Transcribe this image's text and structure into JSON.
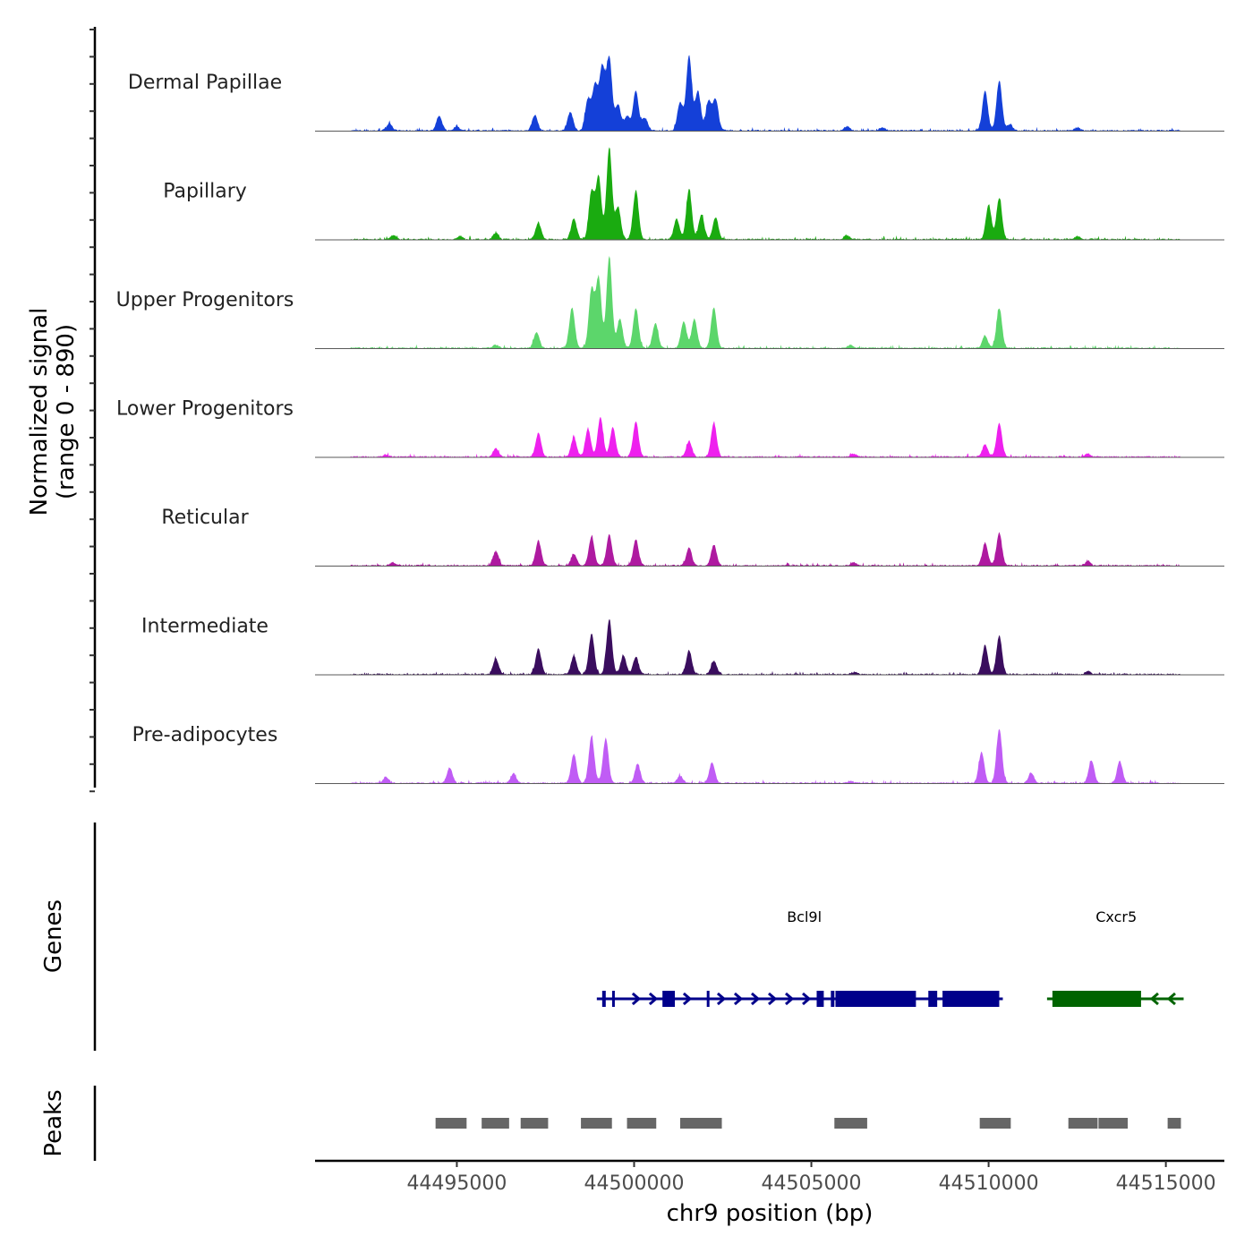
{
  "chart_data": {
    "type": "area",
    "title": "",
    "xlabel": "chr9 position (bp)",
    "ylabel": "Normalized signal\n(range 0 - 890)",
    "ylabel_lines": [
      "Normalized signal",
      "(range 0 - 890)"
    ],
    "xlim": [
      44491000,
      44516650
    ],
    "ylim": [
      0,
      890
    ],
    "x_ticks": [
      44495000,
      44500000,
      44505000,
      44510000,
      44515000
    ],
    "x_tick_labels": [
      "44495000",
      "44500000",
      "44505000",
      "44510000",
      "44515000"
    ],
    "grid": false,
    "legend": "none",
    "baseline_color": "#5a5a5a",
    "series": [
      {
        "name": "Dermal Papillae",
        "color": "#1440d8",
        "peaks": [
          {
            "x": 44493100,
            "y": 70
          },
          {
            "x": 44494500,
            "y": 140
          },
          {
            "x": 44495000,
            "y": 40
          },
          {
            "x": 44497200,
            "y": 150
          },
          {
            "x": 44498200,
            "y": 180
          },
          {
            "x": 44498700,
            "y": 300
          },
          {
            "x": 44498900,
            "y": 430
          },
          {
            "x": 44499100,
            "y": 600
          },
          {
            "x": 44499300,
            "y": 700
          },
          {
            "x": 44499550,
            "y": 250
          },
          {
            "x": 44499800,
            "y": 140
          },
          {
            "x": 44500050,
            "y": 380
          },
          {
            "x": 44500300,
            "y": 120
          },
          {
            "x": 44501300,
            "y": 270
          },
          {
            "x": 44501550,
            "y": 720
          },
          {
            "x": 44501800,
            "y": 380
          },
          {
            "x": 44502100,
            "y": 280
          },
          {
            "x": 44502300,
            "y": 300
          },
          {
            "x": 44506000,
            "y": 40
          },
          {
            "x": 44507000,
            "y": 30
          },
          {
            "x": 44509900,
            "y": 380
          },
          {
            "x": 44510300,
            "y": 480
          },
          {
            "x": 44510600,
            "y": 60
          },
          {
            "x": 44512500,
            "y": 30
          }
        ]
      },
      {
        "name": "Papillary",
        "color": "#1aab10",
        "peaks": [
          {
            "x": 44493200,
            "y": 40
          },
          {
            "x": 44495100,
            "y": 30
          },
          {
            "x": 44496100,
            "y": 60
          },
          {
            "x": 44497300,
            "y": 160
          },
          {
            "x": 44498300,
            "y": 200
          },
          {
            "x": 44498800,
            "y": 460
          },
          {
            "x": 44499000,
            "y": 600
          },
          {
            "x": 44499300,
            "y": 890
          },
          {
            "x": 44499550,
            "y": 310
          },
          {
            "x": 44500050,
            "y": 470
          },
          {
            "x": 44501200,
            "y": 200
          },
          {
            "x": 44501550,
            "y": 480
          },
          {
            "x": 44501900,
            "y": 240
          },
          {
            "x": 44502300,
            "y": 210
          },
          {
            "x": 44506000,
            "y": 40
          },
          {
            "x": 44510000,
            "y": 330
          },
          {
            "x": 44510300,
            "y": 400
          },
          {
            "x": 44512500,
            "y": 30
          }
        ]
      },
      {
        "name": "Upper Progenitors",
        "color": "#5cd66b",
        "peaks": [
          {
            "x": 44496100,
            "y": 30
          },
          {
            "x": 44497250,
            "y": 150
          },
          {
            "x": 44498250,
            "y": 390
          },
          {
            "x": 44498800,
            "y": 560
          },
          {
            "x": 44499000,
            "y": 670
          },
          {
            "x": 44499300,
            "y": 880
          },
          {
            "x": 44499600,
            "y": 280
          },
          {
            "x": 44500050,
            "y": 380
          },
          {
            "x": 44500600,
            "y": 240
          },
          {
            "x": 44501400,
            "y": 260
          },
          {
            "x": 44501700,
            "y": 280
          },
          {
            "x": 44502250,
            "y": 390
          },
          {
            "x": 44506100,
            "y": 30
          },
          {
            "x": 44509900,
            "y": 120
          },
          {
            "x": 44510300,
            "y": 380
          }
        ]
      },
      {
        "name": "Lower Progenitors",
        "color": "#ee20ee",
        "peaks": [
          {
            "x": 44493000,
            "y": 20
          },
          {
            "x": 44496100,
            "y": 80
          },
          {
            "x": 44497300,
            "y": 230
          },
          {
            "x": 44498300,
            "y": 190
          },
          {
            "x": 44498700,
            "y": 270
          },
          {
            "x": 44499050,
            "y": 380
          },
          {
            "x": 44499400,
            "y": 280
          },
          {
            "x": 44500050,
            "y": 340
          },
          {
            "x": 44501550,
            "y": 150
          },
          {
            "x": 44502250,
            "y": 330
          },
          {
            "x": 44506200,
            "y": 30
          },
          {
            "x": 44509900,
            "y": 120
          },
          {
            "x": 44510300,
            "y": 320
          },
          {
            "x": 44512800,
            "y": 30
          }
        ]
      },
      {
        "name": "Reticular",
        "color": "#ae1aa0",
        "peaks": [
          {
            "x": 44493200,
            "y": 30
          },
          {
            "x": 44496100,
            "y": 140
          },
          {
            "x": 44497300,
            "y": 240
          },
          {
            "x": 44498300,
            "y": 110
          },
          {
            "x": 44498800,
            "y": 280
          },
          {
            "x": 44499300,
            "y": 300
          },
          {
            "x": 44500050,
            "y": 250
          },
          {
            "x": 44501550,
            "y": 170
          },
          {
            "x": 44502250,
            "y": 200
          },
          {
            "x": 44506200,
            "y": 30
          },
          {
            "x": 44509900,
            "y": 220
          },
          {
            "x": 44510300,
            "y": 310
          },
          {
            "x": 44512800,
            "y": 40
          }
        ]
      },
      {
        "name": "Intermediate",
        "color": "#3a0d5e",
        "peaks": [
          {
            "x": 44496100,
            "y": 150
          },
          {
            "x": 44497300,
            "y": 250
          },
          {
            "x": 44498300,
            "y": 180
          },
          {
            "x": 44498800,
            "y": 390
          },
          {
            "x": 44499300,
            "y": 530
          },
          {
            "x": 44499700,
            "y": 180
          },
          {
            "x": 44500050,
            "y": 170
          },
          {
            "x": 44501550,
            "y": 230
          },
          {
            "x": 44502250,
            "y": 130
          },
          {
            "x": 44506200,
            "y": 20
          },
          {
            "x": 44509900,
            "y": 280
          },
          {
            "x": 44510300,
            "y": 370
          },
          {
            "x": 44512800,
            "y": 30
          }
        ]
      },
      {
        "name": "Pre-adipocytes",
        "color": "#c05cf5",
        "peaks": [
          {
            "x": 44493000,
            "y": 60
          },
          {
            "x": 44494800,
            "y": 150
          },
          {
            "x": 44496600,
            "y": 90
          },
          {
            "x": 44498300,
            "y": 280
          },
          {
            "x": 44498800,
            "y": 450
          },
          {
            "x": 44499200,
            "y": 430
          },
          {
            "x": 44500100,
            "y": 180
          },
          {
            "x": 44501300,
            "y": 70
          },
          {
            "x": 44502200,
            "y": 200
          },
          {
            "x": 44506100,
            "y": 20
          },
          {
            "x": 44509800,
            "y": 300
          },
          {
            "x": 44510300,
            "y": 520
          },
          {
            "x": 44511200,
            "y": 100
          },
          {
            "x": 44512900,
            "y": 220
          },
          {
            "x": 44513700,
            "y": 210
          }
        ]
      }
    ],
    "genes": [
      {
        "name": "Bcl9l",
        "strand": "+",
        "color": "#00008b",
        "start": 44499100,
        "end": 44510300,
        "exons": [
          [
            44499100,
            44499200
          ],
          [
            44499380,
            44499450
          ],
          [
            44500800,
            44501150
          ],
          [
            44502050,
            44502120
          ],
          [
            44505150,
            44505350
          ],
          [
            44505550,
            44505650
          ],
          [
            44505680,
            44507950
          ],
          [
            44508300,
            44508550
          ],
          [
            44508700,
            44510300
          ]
        ]
      },
      {
        "name": "Cxcr5",
        "strand": "-",
        "color": "#006400",
        "start": 44511800,
        "end": 44515400,
        "exons": [
          [
            44511800,
            44514300
          ]
        ]
      }
    ],
    "peaks_track": {
      "color": "#666666",
      "regions": [
        [
          44494400,
          44495300
        ],
        [
          44495700,
          44496500
        ],
        [
          44496800,
          44497600
        ],
        [
          44498500,
          44499400
        ],
        [
          44499800,
          44500650
        ],
        [
          44501300,
          44502500
        ],
        [
          44505650,
          44506600
        ],
        [
          44509750,
          44510650
        ],
        [
          44512250,
          44513100
        ],
        [
          44513100,
          44513950
        ],
        [
          44515050,
          44515450
        ]
      ]
    },
    "panels": [
      "Genes",
      "Peaks"
    ]
  }
}
